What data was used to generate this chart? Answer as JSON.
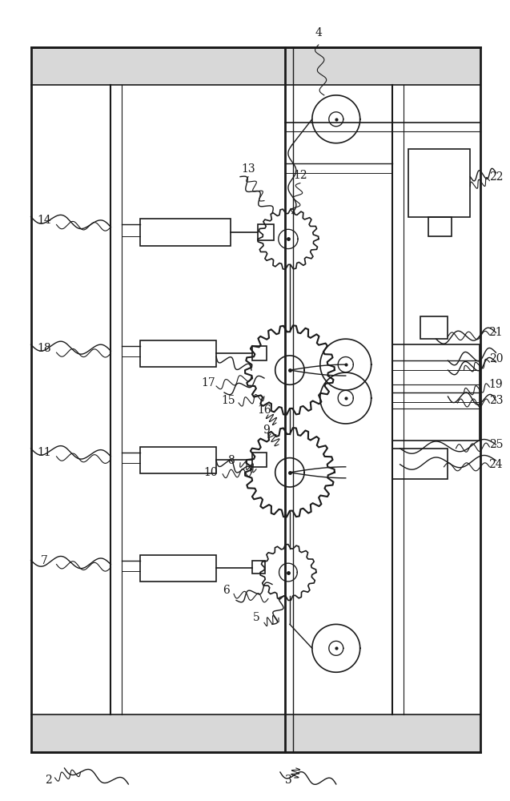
{
  "bg_color": "#ffffff",
  "lc": "#1a1a1a",
  "fig_w": 6.37,
  "fig_h": 10.0,
  "dpi": 100
}
